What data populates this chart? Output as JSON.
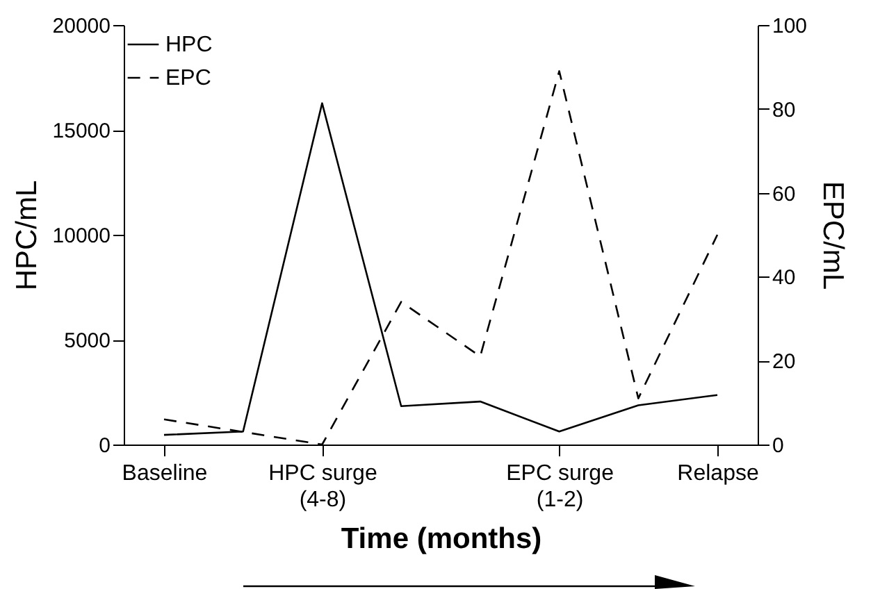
{
  "chart_data": {
    "type": "line",
    "xlabel": "Time (months)",
    "ylabel": "HPC/mL",
    "y2label": "EPC/mL",
    "categories": [
      "Baseline",
      null,
      "HPC surge\n(4-8)",
      null,
      null,
      "EPC surge\n(1-2)",
      null,
      "Relapse"
    ],
    "series": [
      {
        "name": "HPC",
        "color": "#000000",
        "line_style": "solid",
        "values": [
          460,
          620,
          16270,
          1830,
          2050,
          620,
          1870,
          2360
        ]
      },
      {
        "name": "EPC",
        "color": "#000000",
        "line_style": "dashed",
        "axis": "y2",
        "values": [
          6,
          3,
          0,
          34,
          21,
          89,
          11,
          50
        ]
      }
    ],
    "ylim": [
      0,
      20000
    ],
    "yticks": [
      0,
      5000,
      10000,
      15000,
      20000
    ],
    "y2lim": [
      0,
      100
    ],
    "y2ticks": [
      0,
      20,
      40,
      60,
      80,
      100
    ],
    "grid": false,
    "legend": "top left",
    "marker": "none"
  }
}
